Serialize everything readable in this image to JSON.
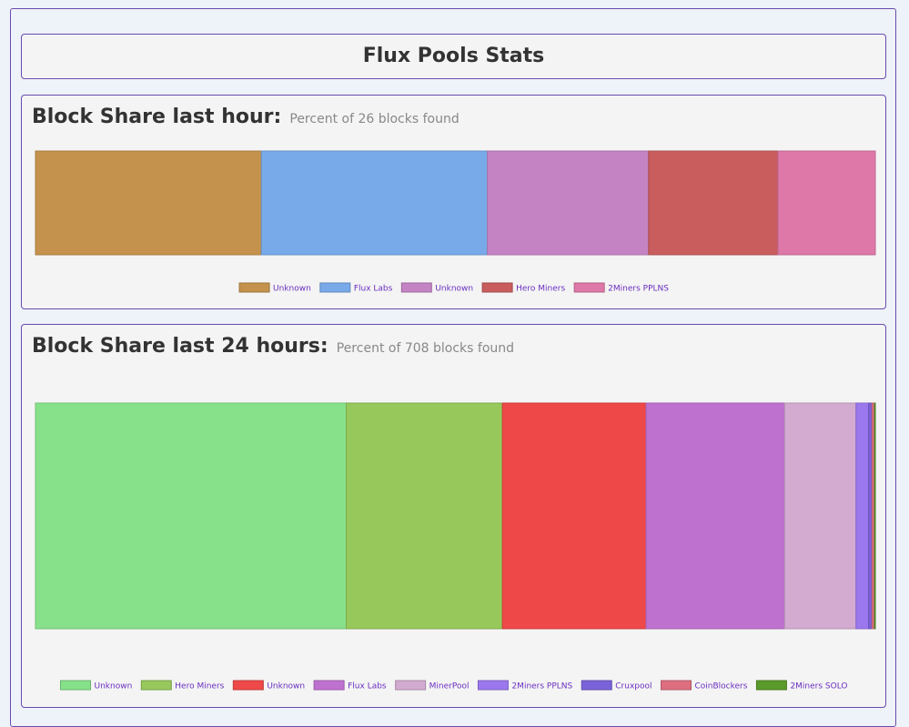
{
  "page": {
    "title": "Flux Pools Stats"
  },
  "chart_data": [
    {
      "type": "bar",
      "stacked": true,
      "orientation": "horizontal",
      "title": "Block Share last hour:",
      "subtitle": "Percent of 26 blocks found",
      "xlim": [
        0,
        100
      ],
      "legend_position": "bottom",
      "series": [
        {
          "name": "Unknown",
          "values": [
            26.9
          ],
          "color": "#c4924c"
        },
        {
          "name": "Flux Labs",
          "values": [
            26.9
          ],
          "color": "#78aaea"
        },
        {
          "name": "Unknown",
          "values": [
            19.2
          ],
          "color": "#c484c4"
        },
        {
          "name": "Hero Miners",
          "values": [
            15.4
          ],
          "color": "#c95d5e"
        },
        {
          "name": "2Miners PPLNS",
          "values": [
            11.6
          ],
          "color": "#de78a8"
        }
      ]
    },
    {
      "type": "bar",
      "stacked": true,
      "orientation": "horizontal",
      "title": "Block Share last 24 hours:",
      "subtitle": "Percent of 708 blocks found",
      "xlim": [
        0,
        100
      ],
      "legend_position": "bottom",
      "series": [
        {
          "name": "Unknown",
          "values": [
            37.0
          ],
          "color": "#86e18a"
        },
        {
          "name": "Hero Miners",
          "values": [
            18.6
          ],
          "color": "#96c85c"
        },
        {
          "name": "Unknown",
          "values": [
            17.1
          ],
          "color": "#ef4848"
        },
        {
          "name": "Flux Labs",
          "values": [
            16.5
          ],
          "color": "#bf71d0"
        },
        {
          "name": "MinerPool",
          "values": [
            8.5
          ],
          "color": "#d3abd0"
        },
        {
          "name": "2Miners PPLNS",
          "values": [
            1.5
          ],
          "color": "#9b78ee"
        },
        {
          "name": "Cruxpool",
          "values": [
            0.4
          ],
          "color": "#7a62d8"
        },
        {
          "name": "CoinBlockers",
          "values": [
            0.3
          ],
          "color": "#dc6e80"
        },
        {
          "name": "2Miners SOLO",
          "values": [
            0.1
          ],
          "color": "#5a9a2a"
        }
      ]
    }
  ]
}
